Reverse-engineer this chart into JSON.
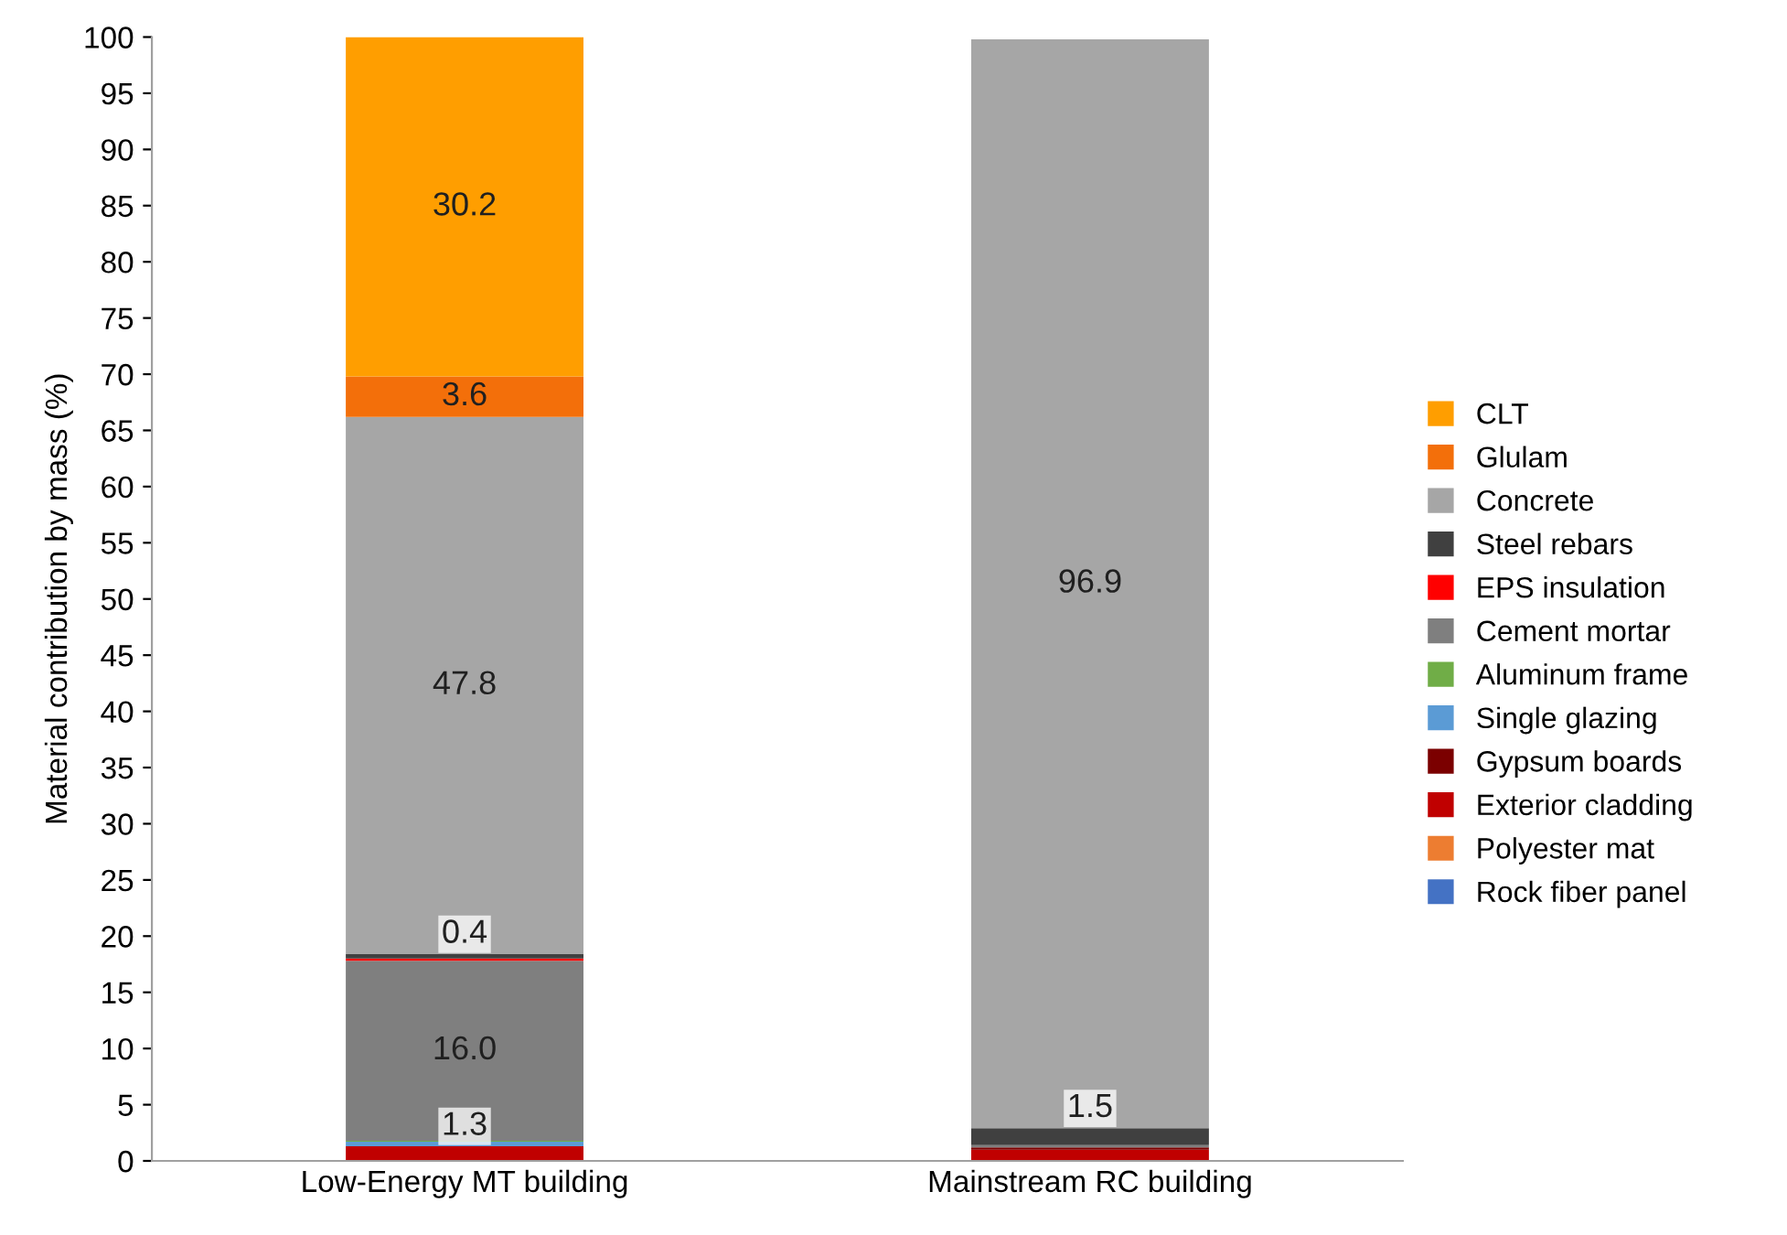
{
  "chart_data": {
    "type": "bar",
    "stacked": true,
    "ylabel": "Material contribution by mass (%)",
    "categories": [
      "Low-Energy MT building",
      "Mainstream RC building"
    ],
    "ylim": [
      0,
      100
    ],
    "yticks": [
      0,
      5,
      10,
      15,
      20,
      25,
      30,
      35,
      40,
      45,
      50,
      55,
      60,
      65,
      70,
      75,
      80,
      85,
      90,
      95,
      100
    ],
    "grid": false,
    "legend": "right",
    "series": [
      {
        "name": "Rock fiber panel",
        "color": "#4472c4",
        "values": [
          0,
          0
        ]
      },
      {
        "name": "Polyester mat",
        "color": "#ed7d31",
        "values": [
          0,
          null
        ]
      },
      {
        "name": "Exterior cladding",
        "color": "#c00000",
        "values": [
          1.3,
          1.0
        ],
        "value_labels": [
          "1.3",
          null
        ]
      },
      {
        "name": "Gypsum boards",
        "color": "#7b0000",
        "values": [
          0,
          0.2
        ]
      },
      {
        "name": "Single glazing",
        "color": "#5b9bd5",
        "values": [
          0.4,
          0
        ]
      },
      {
        "name": "Aluminum frame",
        "color": "#70ad47",
        "values": [
          0.1,
          0
        ]
      },
      {
        "name": "Cement mortar",
        "color": "#7f7f7f",
        "values": [
          16.0,
          0.2
        ],
        "value_labels": [
          "16.0",
          null
        ]
      },
      {
        "name": "EPS insulation",
        "color": "#ff0000",
        "values": [
          0.2,
          0
        ]
      },
      {
        "name": "Steel rebars",
        "color": "#404040",
        "values": [
          0.4,
          1.5
        ],
        "value_labels": [
          "0.4",
          "1.5"
        ]
      },
      {
        "name": "Concrete",
        "color": "#a6a6a6",
        "values": [
          47.8,
          96.9
        ],
        "value_labels": [
          "47.8",
          "96.9"
        ]
      },
      {
        "name": "Glulam",
        "color": "#f36f0a",
        "values": [
          3.6,
          0
        ],
        "value_labels": [
          "3.6",
          null
        ]
      },
      {
        "name": "CLT",
        "color": "#ff9e00",
        "values": [
          30.2,
          0
        ],
        "value_labels": [
          "30.2",
          null
        ]
      }
    ]
  }
}
